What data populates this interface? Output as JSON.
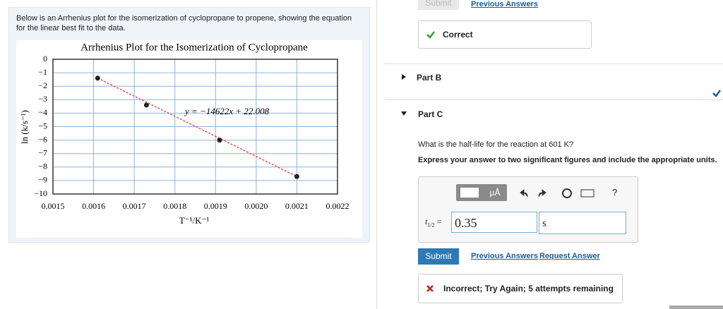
{
  "instructions": "Below is an Arrhenius plot for the isomerization of cyclopropane to propene, showing the equation for the linear best fit to the data.",
  "chart_data": {
    "type": "scatter",
    "title": "Arrhenius Plot for the Isomerization of Cyclopropane",
    "x_label": "T⁻¹/K⁻¹",
    "y_label": "ln (k/s⁻¹)",
    "annotation": "y = −14622x + 22.008",
    "x": [
      0.00161,
      0.00173,
      0.00191,
      0.0021
    ],
    "values": [
      -1.4,
      -3.4,
      -6.0,
      -8.7
    ],
    "color": "#222222",
    "fit_line_color": "#d9534f",
    "grid": true,
    "xlim": [
      0.0015,
      0.0022
    ],
    "xticks": [
      0.0015,
      0.0016,
      0.0017,
      0.0018,
      0.0019,
      {
        "value": 0.002,
        "label": "0.0020"
      },
      0.0021,
      0.0022
    ],
    "ylim": [
      -10,
      0
    ],
    "yticks": [
      0,
      {
        "value": -1,
        "label": "−1"
      },
      {
        "value": -2,
        "label": "−2"
      },
      {
        "value": -3,
        "label": "−3"
      },
      {
        "value": -4,
        "label": "−4"
      },
      {
        "value": -5,
        "label": "−5"
      },
      {
        "value": -6,
        "label": "−6"
      },
      {
        "value": -7,
        "label": "−7"
      },
      {
        "value": -8,
        "label": "−8"
      },
      {
        "value": -9,
        "label": "−9"
      },
      {
        "value": -10,
        "label": "−10"
      }
    ]
  },
  "top_bar": {
    "submit": "Submit",
    "previous_answers": "Previous Answers"
  },
  "part_a_feedback": "Correct",
  "parts": [
    "Part B",
    "Part C"
  ],
  "question": "What is the half-life for the reaction at 601 K?",
  "instruction": "Express your answer to two significant figures and include the appropriate units.",
  "toolbar": {
    "units": "μÅ",
    "help": "?"
  },
  "answer": {
    "label_var": "t",
    "label_sub": "1/2",
    "label_eq": "=",
    "value": "0.35",
    "unit": "s"
  },
  "actions": {
    "submit": "Submit",
    "previous_answers": "Previous Answers",
    "request_answer": "Request Answer"
  },
  "feedback": "Incorrect; Try Again; 5 attempts remaining"
}
